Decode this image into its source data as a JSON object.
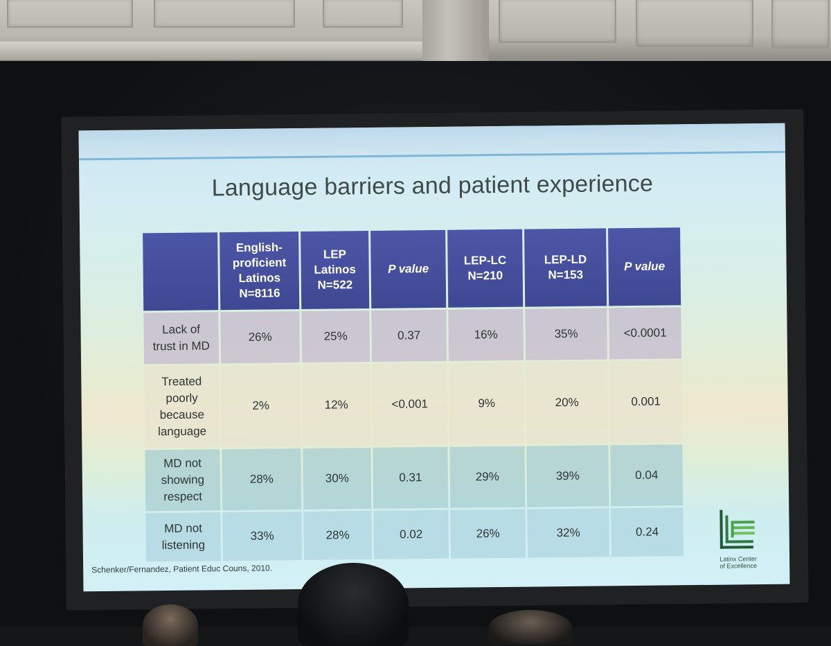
{
  "slide": {
    "title": "Language barriers and patient experience",
    "table": {
      "headers": [
        "",
        "English-\nproficient\nLatinos\nN=8116",
        "LEP\nLatinos\nN=522",
        "P value",
        "LEP-LC\nN=210",
        "LEP-LD\nN=153",
        "P value"
      ],
      "rows": [
        {
          "label": "Lack of\ntrust in MD",
          "cells": [
            "26%",
            "25%",
            "0.37",
            "16%",
            "35%",
            "<0.0001"
          ]
        },
        {
          "label": "Treated\npoorly\nbecause\nlanguage",
          "cells": [
            "2%",
            "12%",
            "<0.001",
            "9%",
            "20%",
            "0.001"
          ]
        },
        {
          "label": "MD not\nshowing\nrespect",
          "cells": [
            "28%",
            "30%",
            "0.31",
            "29%",
            "39%",
            "0.04"
          ]
        },
        {
          "label": "MD not\nlistening",
          "cells": [
            "33%",
            "28%",
            "0.02",
            "26%",
            "32%",
            "0.24"
          ]
        }
      ]
    },
    "citation": "Schenker/Fernandez, Patient Educ Couns, 2010.",
    "logo": {
      "text": "Latinx Center\nof Excellence",
      "icon": "bars-logo-icon"
    },
    "colors": {
      "header_bg": "#434c99",
      "header_text": "#ffffff",
      "highlight_text": "#a3382a"
    }
  }
}
